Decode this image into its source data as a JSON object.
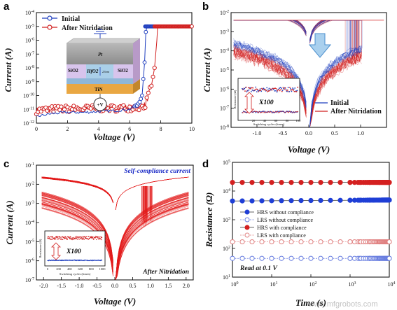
{
  "panels": {
    "a": {
      "letter": "a"
    },
    "b": {
      "letter": "b"
    },
    "c": {
      "letter": "c"
    },
    "d": {
      "letter": "d"
    }
  },
  "watermark": "www.mfgrobots.com",
  "chart_data": [
    {
      "panel": "a",
      "type": "line",
      "xlabel": "Voltage (V)",
      "ylabel": "Current (A)",
      "xlim": [
        0,
        10
      ],
      "ylim_log10": [
        -12,
        -4
      ],
      "xticks": [
        "0",
        "2",
        "4",
        "6",
        "8",
        "10"
      ],
      "yticks": [
        "10-12",
        "10-11",
        "10-10",
        "10-9",
        "10-8",
        "10-7",
        "10-6",
        "10-5",
        "10-4"
      ],
      "legend": [
        "Initial",
        "After Nitridation"
      ],
      "legend_position": "top-left",
      "series": [
        {
          "name": "Initial",
          "color": "#1f3fbf",
          "x": [
            0,
            1,
            2,
            3,
            4,
            5,
            6,
            6.5,
            6.8,
            7.0,
            7.05,
            8,
            9,
            10
          ],
          "y": [
            3e-12,
            5e-12,
            6e-12,
            6e-12,
            7e-12,
            8e-12,
            1e-11,
            2e-11,
            1e-10,
            1e-07,
            1e-05,
            1e-05,
            1e-05,
            1e-05
          ]
        },
        {
          "name": "After Nitridation",
          "color": "#d11f1f",
          "x": [
            0,
            1,
            2,
            3,
            4,
            5,
            6,
            6.5,
            7,
            7.4,
            7.6,
            7.75,
            7.8,
            8,
            9,
            10
          ],
          "y": [
            8e-12,
            1e-11,
            1.1e-11,
            1.1e-11,
            1.2e-11,
            1.2e-11,
            1.3e-11,
            1.4e-11,
            2e-11,
            5e-10,
            1e-08,
            1e-06,
            1e-05,
            1e-05,
            1e-05,
            1e-05
          ]
        }
      ],
      "inset_labels": {
        "top": "Pt",
        "oxide_left": "SiO2",
        "oxide_right": "SiO2",
        "switching": "HfO2",
        "thickness": "23nm",
        "bottom": "TiN",
        "bias": "+V"
      }
    },
    {
      "panel": "b",
      "type": "line",
      "xlabel": "Voltage (V)",
      "ylabel": "Current (A)",
      "xlim": [
        -1.5,
        1.5
      ],
      "ylim_log10": [
        -8,
        -2
      ],
      "xticks": [
        "-1.0",
        "-0.5",
        "0.0",
        "0.5",
        "1.0"
      ],
      "yticks": [
        "10-8",
        "10-7",
        "10-6",
        "10-5",
        "10-4",
        "10-3",
        "10-2"
      ],
      "legend": [
        "Initial",
        "After Nitridation"
      ],
      "legend_position": "bottom-right",
      "inset": {
        "xlabel": "Switching cycles (times)",
        "ylabel": "Resistance (Ω)",
        "annotation": "X100",
        "xticks": [
          "20",
          "40",
          "60",
          "80",
          "100"
        ]
      }
    },
    {
      "panel": "c",
      "type": "line",
      "xlabel": "Voltage (V)",
      "ylabel": "Current (A)",
      "xlim": [
        -2.2,
        2.2
      ],
      "ylim_log10": [
        -7,
        -1
      ],
      "xticks": [
        "-2.0",
        "-1.5",
        "-1.0",
        "-0.5",
        "0.0",
        "0.5",
        "1.0",
        "1.5",
        "2.0"
      ],
      "yticks": [
        "10-7",
        "10-6",
        "10-5",
        "10-4",
        "10-3",
        "10-2",
        "10-1"
      ],
      "annotations": [
        "Self-compliance current",
        "After Nitridation"
      ],
      "inset": {
        "xlabel": "Switching cycles (times)",
        "ylabel": "Resistance (Ω)",
        "annotation": "X100",
        "xticks": [
          "0",
          "200",
          "400",
          "600",
          "800",
          "1000"
        ]
      }
    },
    {
      "panel": "d",
      "type": "scatter",
      "xlabel": "Time (s)",
      "ylabel": "Resistance (Ω)",
      "xlim_log10": [
        0,
        4
      ],
      "ylim_log10": [
        1,
        5
      ],
      "xticks": [
        "10^0",
        "10^1",
        "10^2",
        "10^3",
        "10^4"
      ],
      "yticks": [
        "10^1",
        "10^2",
        "10^3",
        "10^4",
        "10^5"
      ],
      "annotation": "Read at 0.1 V",
      "legend_position": "center-left",
      "series": [
        {
          "name": "HRS without compliance",
          "color": "#1f3fd6",
          "filled": true,
          "value": 4500
        },
        {
          "name": "LRS without compliance",
          "color": "#6a7fe0",
          "filled": false,
          "value": 45
        },
        {
          "name": "HRS with compliance",
          "color": "#d42020",
          "filled": true,
          "value": 20000
        },
        {
          "name": "LRS with compliance",
          "color": "#e08080",
          "filled": false,
          "value": 170
        }
      ]
    }
  ]
}
